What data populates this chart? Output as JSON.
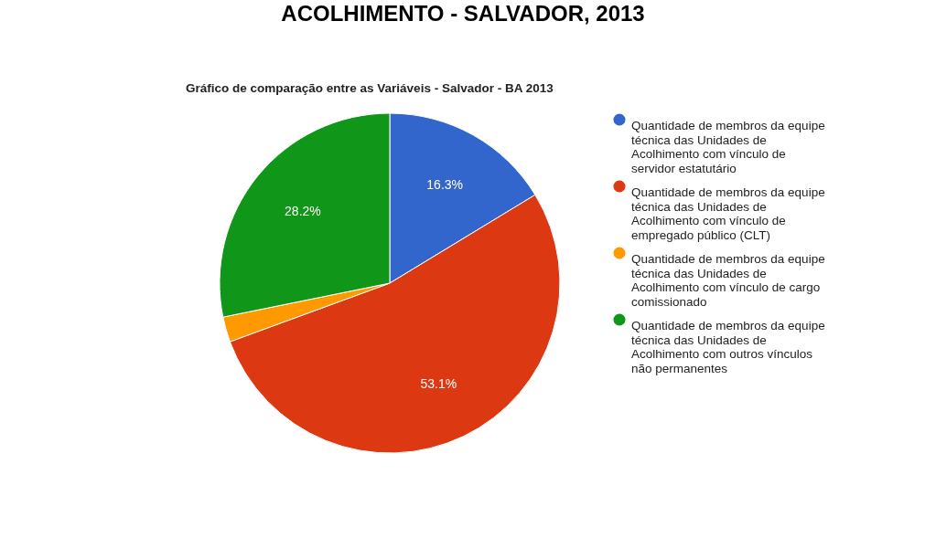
{
  "chart_data": {
    "type": "pie",
    "title": "ACOLHIMENTO - SALVADOR, 2013",
    "subtitle": "Gráfico de comparação entre as Variáveis - Salvador - BA 2013",
    "categories": [
      "Quantidade de membros da equipe técnica das Unidades de Acolhimento com vínculo de servidor estatutário",
      "Quantidade de membros da equipe técnica das Unidades de Acolhimento com vínculo de empregado público (CLT)",
      "Quantidade de membros da equipe técnica das Unidades de Acolhimento com vínculo de cargo comissionado",
      "Quantidade de membros da equipe técnica das Unidades de Acolhimento com outros vínculos não permanentes"
    ],
    "values": [
      16.3,
      53.1,
      2.4,
      28.2
    ],
    "colors": [
      "#3366cc",
      "#dc3912",
      "#ff9900",
      "#109618"
    ],
    "value_labels": [
      "16.3%",
      "53.1%",
      null,
      "28.2%"
    ],
    "legend": "right"
  }
}
